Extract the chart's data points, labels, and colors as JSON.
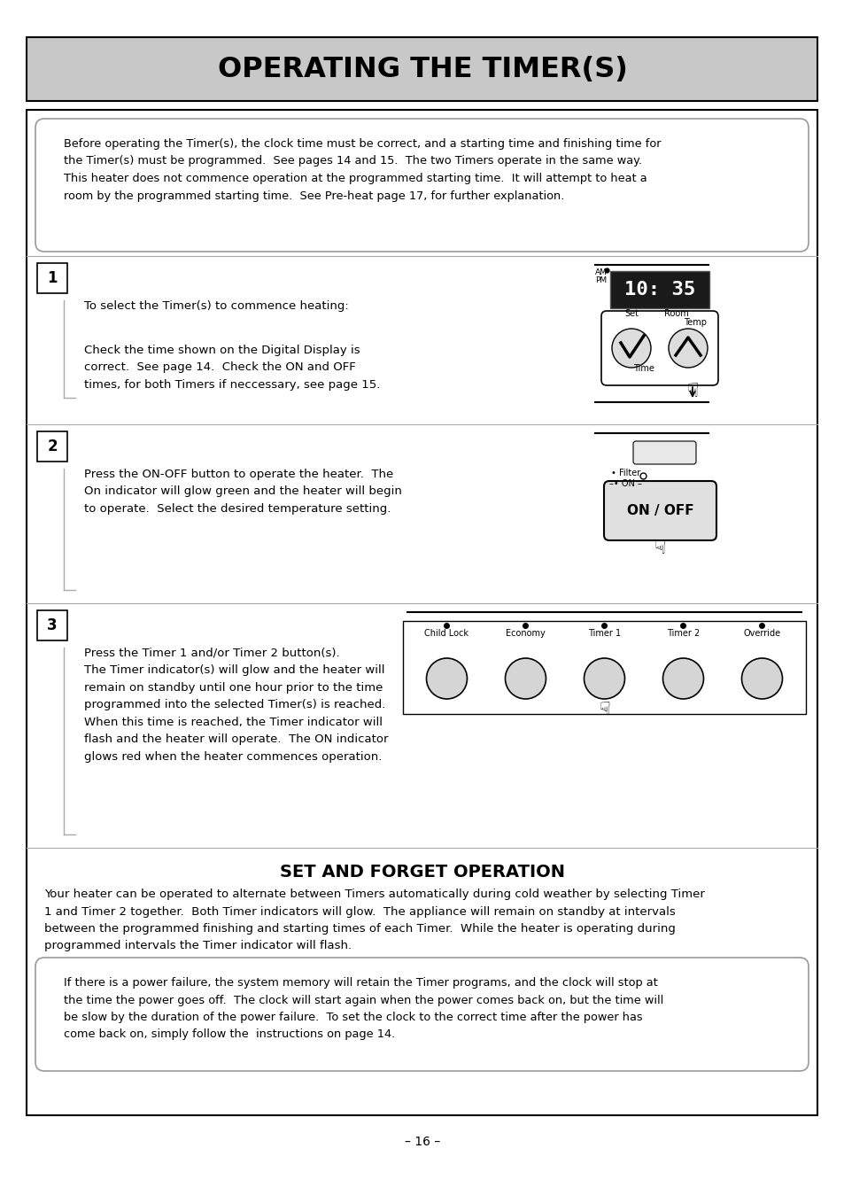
{
  "title": "OPERATING THE TIMER(S)",
  "title_bg": "#c8c8c8",
  "page_bg": "#ffffff",
  "page_number": "– 16 –",
  "intro_text": "Before operating the Timer(s), the clock time must be correct, and a starting time and finishing time for\nthe Timer(s) must be programmed.  See pages 14 and 15.  The two Timers operate in the same way.\nThis heater does not commence operation at the programmed starting time.  It will attempt to heat a\nroom by the programmed starting time.  See Pre-heat page 17, for further explanation.",
  "step1_text_a": "To select the Timer(s) to commence heating:",
  "step1_text_b": "Check the time shown on the Digital Display is\ncorrect.  See page 14.  Check the ON and OFF\ntimes, for both Timers if neccessary, see page 15.",
  "step2_text": "Press the ON-OFF button to operate the heater.  The\nOn indicator will glow green and the heater will begin\nto operate.  Select the desired temperature setting.",
  "step3_text": "Press the Timer 1 and/or Timer 2 button(s).\nThe Timer indicator(s) will glow and the heater will\nremain on standby until one hour prior to the time\nprogrammed into the selected Timer(s) is reached.\nWhen this time is reached, the Timer indicator will\nflash and the heater will operate.  The ON indicator\nglows red when the heater commences operation.",
  "set_forget_title": "SET AND FORGET OPERATION",
  "set_forget_text": "Your heater can be operated to alternate between Timers automatically during cold weather by selecting Timer\n1 and Timer 2 together.  Both Timer indicators will glow.  The appliance will remain on standby at intervals\nbetween the programmed finishing and starting times of each Timer.  While the heater is operating during\nprogrammed intervals the Timer indicator will flash.",
  "power_fail_text": "If there is a power failure, the system memory will retain the Timer programs, and the clock will stop at\nthe time the power goes off.  The clock will start again when the power comes back on, but the time will\nbe slow by the duration of the power failure.  To set the clock to the correct time after the power has\ncome back on, simply follow the  instructions on page 14.",
  "btn3_labels": [
    "Child Lock",
    "Economy",
    "Timer 1",
    "Timer 2",
    "Override"
  ]
}
